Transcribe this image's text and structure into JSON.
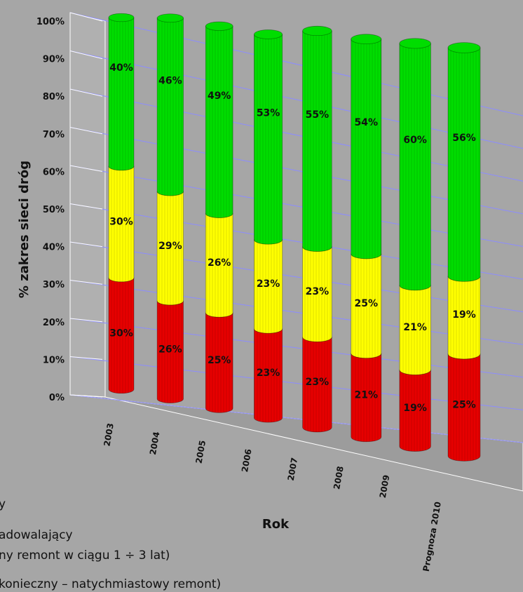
{
  "chart_data": {
    "type": "bar",
    "stacked": true,
    "percent_stacked": true,
    "categories": [
      "2003",
      "2004",
      "2005",
      "2006",
      "2007",
      "2008",
      "2009",
      "Prognoza 2010"
    ],
    "series": [
      {
        "key": "red",
        "color": "#e60000",
        "values": [
          30,
          26,
          25,
          23,
          23,
          21,
          19,
          25
        ]
      },
      {
        "key": "yellow",
        "color": "#ffff00",
        "values": [
          30,
          29,
          26,
          23,
          23,
          25,
          21,
          19
        ]
      },
      {
        "key": "green",
        "color": "#00dd00",
        "values": [
          40,
          46,
          49,
          53,
          55,
          54,
          60,
          56
        ]
      }
    ],
    "ylabel": "% zakres sieci dróg",
    "xlabel": "Rok",
    "yticks": [
      "0%",
      "10%",
      "20%",
      "30%",
      "40%",
      "50%",
      "60%",
      "70%",
      "80%",
      "90%",
      "100%"
    ],
    "ylim": [
      0,
      100
    ],
    "grid": true
  },
  "legend_fragments": [
    "y",
    "adowalający",
    "ny  remont w ciągu 1 ÷ 3 lat)",
    "konieczny – natychmiastowy remont)"
  ]
}
